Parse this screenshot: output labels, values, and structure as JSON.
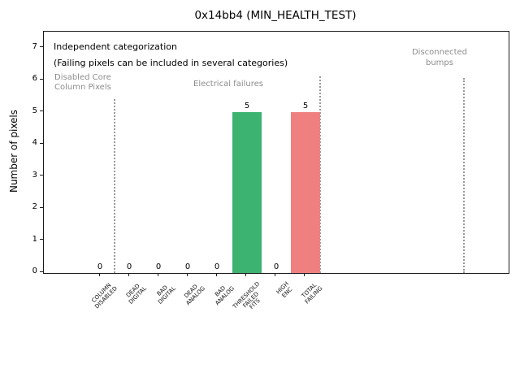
{
  "chart_data": {
    "type": "bar",
    "title": "0x14bb4 (MIN_HEALTH_TEST)",
    "ylabel": "Number of pixels",
    "xlabel": "",
    "ylim": [
      0,
      7.5
    ],
    "yticks": [
      0,
      1,
      2,
      3,
      4,
      5,
      6,
      7
    ],
    "grid": false,
    "legend": false,
    "categories": [
      "COLUMN DISABLED",
      "DEAD DIGITAL",
      "BAD DIGITAL",
      "DEAD ANALOG",
      "BAD ANALOG",
      "THRESHOLD FAILED FITS",
      "HIGH ENC",
      "TOTAL FAILING"
    ],
    "label_lines": [
      [
        "COLUMN",
        "DISABLED"
      ],
      [
        "DEAD",
        "DIGITAL"
      ],
      [
        "BAD",
        "DIGITAL"
      ],
      [
        "DEAD",
        "ANALOG"
      ],
      [
        "BAD",
        "ANALOG"
      ],
      [
        "THRESHOLD",
        "FAILED",
        "FITS"
      ],
      [
        "HIGH",
        "ENC"
      ],
      [
        "TOTAL",
        "FAILING"
      ]
    ],
    "values": [
      0,
      0,
      0,
      0,
      0,
      5,
      0,
      5
    ],
    "bar_colors": [
      "#3cb371",
      "#3cb371",
      "#3cb371",
      "#3cb371",
      "#3cb371",
      "#3cb371",
      "#3cb371",
      "#f08080"
    ],
    "annotations": {
      "note_line1": "Independent categorization",
      "note_line2": "(Failing pixels can be included in several categories)",
      "region_disabled_line1": "Disabled Core",
      "region_disabled_line2": "Column Pixels",
      "region_electrical": "Electrical failures",
      "region_disconnected_line1": "Disconnected",
      "region_disconnected_line2": "bumps"
    },
    "separator_style": "dotted",
    "colors": {
      "bar_green": "#3cb371",
      "bar_red": "#f08080",
      "annotation_gray": "#8c8c8c",
      "separator_gray": "#999999",
      "axis_black": "#1a1a1a"
    }
  }
}
